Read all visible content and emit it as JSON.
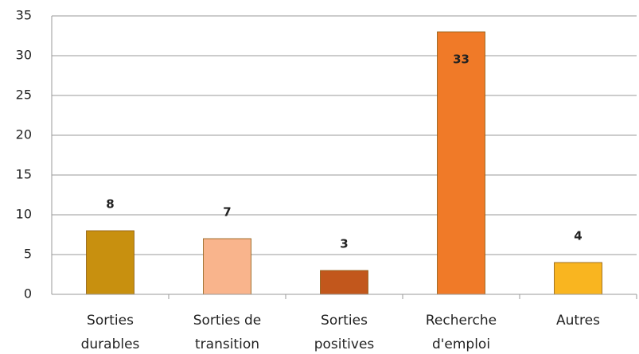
{
  "chart_data": {
    "type": "bar",
    "categories": [
      "Sorties durables",
      "Sorties de transition",
      "Sorties positives",
      "Recherche d'emploi",
      "Autres"
    ],
    "values": [
      8,
      7,
      3,
      33,
      4
    ],
    "colors": [
      "#c8900f",
      "#f9b48c",
      "#c2571c",
      "#f07a28",
      "#f9b520"
    ],
    "ylim": [
      0,
      35
    ],
    "yticks": [
      0,
      5,
      10,
      15,
      20,
      25,
      30,
      35
    ],
    "grid": true
  }
}
